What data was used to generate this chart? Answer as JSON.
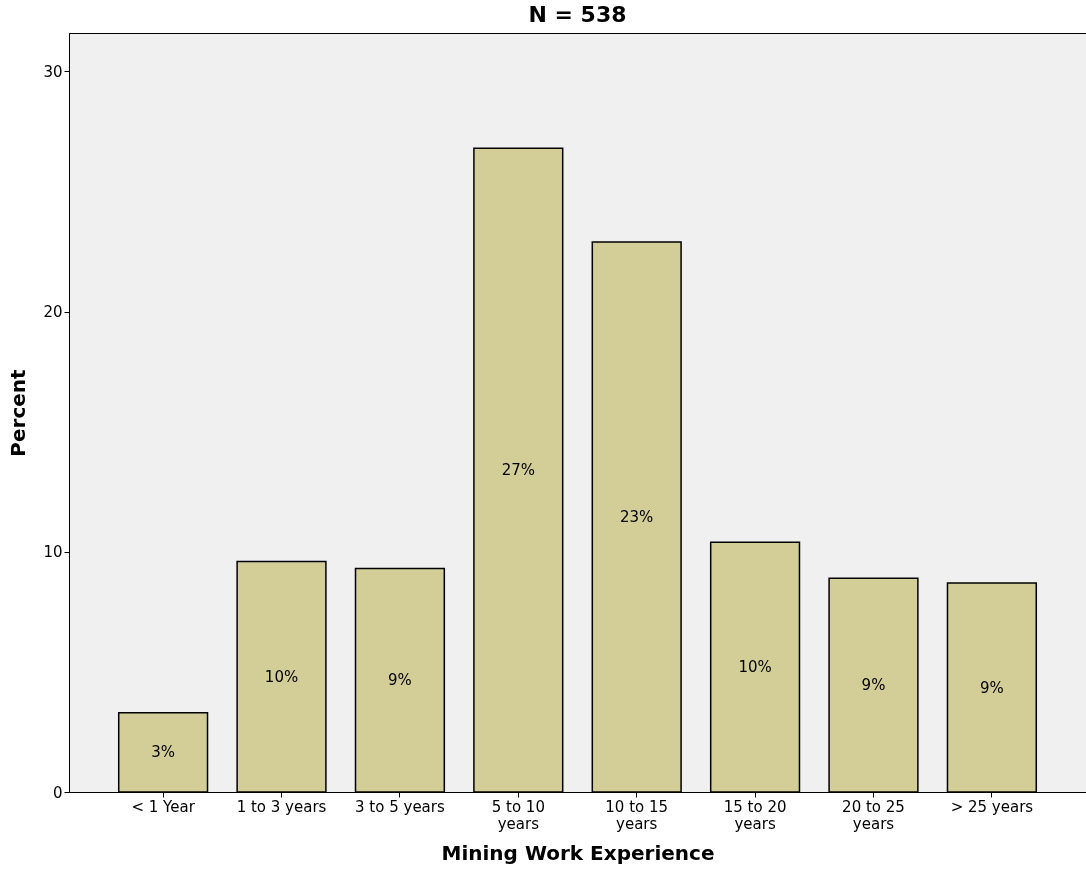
{
  "chart_data": {
    "type": "bar",
    "title": "N = 538",
    "xlabel": "Mining Work Experience",
    "ylabel": "Percent",
    "categories": [
      "< 1 Year",
      "1 to 3 years",
      "3 to 5 years",
      "5 to 10 years",
      "10 to 15 years",
      "15 to 20 years",
      "20 to 25 years",
      "> 25 years"
    ],
    "values": [
      3.3,
      9.6,
      9.3,
      26.8,
      22.9,
      10.4,
      8.9,
      8.7
    ],
    "value_labels": [
      "3%",
      "10%",
      "9%",
      "27%",
      "23%",
      "10%",
      "9%",
      "9%"
    ],
    "color": "#d3ce97",
    "ylim": [
      0,
      31.6
    ],
    "yticks": [
      0,
      10,
      20,
      30
    ],
    "grid": false
  }
}
